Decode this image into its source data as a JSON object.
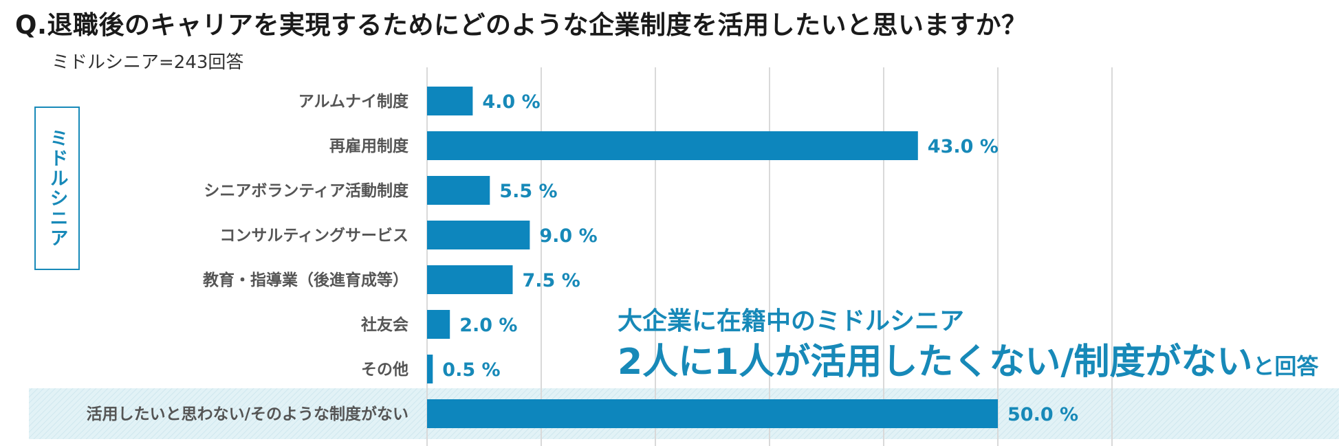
{
  "title": "Q.退職後のキャリアを実現するためにどのような企業制度を活用したいと思いますか？",
  "subtitle": "ミドルシニア=243回答",
  "group_label": "ミドルシニア",
  "callout": {
    "line1": "大企業に在籍中のミドルシニア",
    "line2_main": "2人に1人が活用したくない/制度がない",
    "line2_suffix": "と回答"
  },
  "colors": {
    "bar": "#0d86bd",
    "label": "#1789b8",
    "highlight_band": "#e2f2f6"
  },
  "chart_data": {
    "type": "bar",
    "orientation": "horizontal",
    "categories": [
      "アルムナイ制度",
      "再雇用制度",
      "シニアボランティア活動制度",
      "コンサルティングサービス",
      "教育・指導業（後進育成等）",
      "社友会",
      "その他",
      "活用したいと思わない/そのような制度がない"
    ],
    "values": [
      4.0,
      43.0,
      5.5,
      9.0,
      7.5,
      2.0,
      0.5,
      50.0
    ],
    "value_labels": [
      "4.0 %",
      "43.0 %",
      "5.5 %",
      "9.0 %",
      "7.5 %",
      "2.0 %",
      "0.5 %",
      "50.0 %"
    ],
    "highlighted_category": "活用したいと思わない/そのような制度がない",
    "xlim": [
      0,
      60
    ],
    "grid": true,
    "title": "Q.退職後のキャリアを実現するためにどのような企業制度を活用したいと思いますか？"
  }
}
